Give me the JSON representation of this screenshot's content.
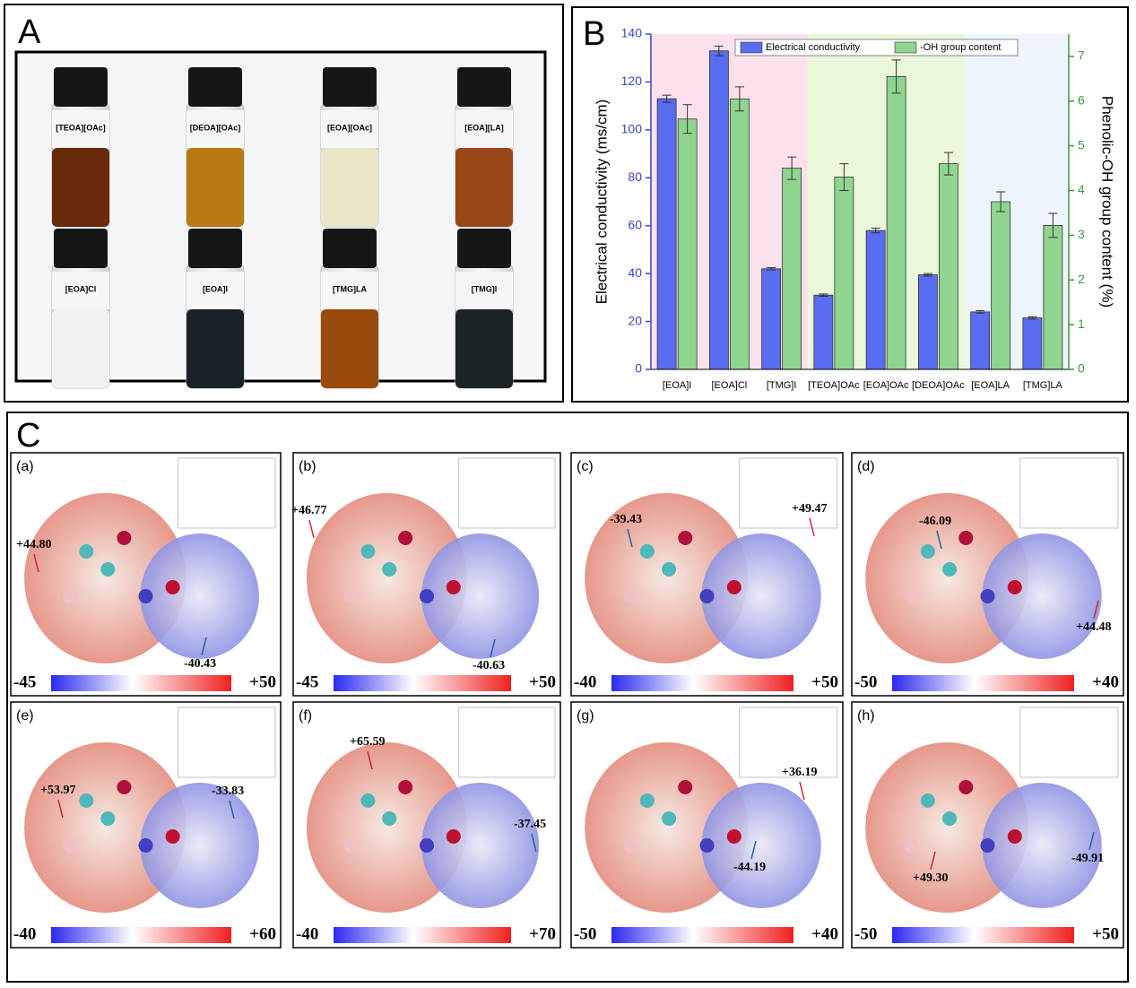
{
  "panel_a": {
    "label": "A",
    "vials": [
      {
        "label": "[TEOA][OAc]",
        "color": "#6b2a0c"
      },
      {
        "label": "[DEOA][OAc]",
        "color": "#b87a12"
      },
      {
        "label": "[EOA][OAc]",
        "color": "#e9e7c8"
      },
      {
        "label": "[EOA][LA]",
        "color": "#9a4818"
      },
      {
        "label": "[EOA]Cl",
        "color": "#f1f1ef"
      },
      {
        "label": "[EOA]I",
        "color": "#1a2228"
      },
      {
        "label": "[TMG]LA",
        "color": "#9a4a0c"
      },
      {
        "label": "[TMG]I",
        "color": "#1c2428"
      }
    ]
  },
  "chart_data": {
    "type": "bar",
    "label": "B",
    "categories": [
      "[EOA]I",
      "[EOA]Cl",
      "[TMG]I",
      "[TEOA]OAc",
      "[EOA]OAc",
      "[DEOA]OAc",
      "[EOA]LA",
      "[TMG]LA"
    ],
    "series": [
      {
        "name": "Electrical conductivity",
        "color": "#5a6cf0",
        "values": [
          113,
          133,
          42,
          31,
          58,
          39.5,
          24,
          21.5
        ],
        "errors": [
          1.5,
          2,
          0.5,
          0.5,
          1,
          0.5,
          0.5,
          0.5
        ]
      },
      {
        "name": "-OH group content",
        "color": "#8fd48f",
        "axis": "y2",
        "values": [
          5.6,
          6.05,
          4.5,
          4.3,
          6.55,
          4.6,
          3.75,
          3.22
        ],
        "errors": [
          0.32,
          0.27,
          0.25,
          0.3,
          0.37,
          0.25,
          0.22,
          0.27
        ]
      }
    ],
    "y_label": "Electrical conductivity (ms/cm)",
    "y2_label": "Phenolic-OH group content (%)",
    "ylim": [
      0,
      140
    ],
    "yticks": [
      0,
      20,
      40,
      60,
      80,
      100,
      120,
      140
    ],
    "y2lim": [
      0,
      7.5
    ],
    "y2ticks": [
      0,
      1,
      2,
      3,
      4,
      5,
      6,
      7
    ],
    "y_color": "#3a48b8",
    "y2_color": "#3c9a3c",
    "legend": "top"
  },
  "panel_c": {
    "label": "C",
    "panels": [
      {
        "label": "(a)",
        "annotations": [
          "+44.80",
          "-40.43"
        ],
        "scale_min": "-45",
        "scale_max": "+50"
      },
      {
        "label": "(b)",
        "annotations": [
          "+46.77",
          "-40.63"
        ],
        "scale_min": "-45",
        "scale_max": "+50"
      },
      {
        "label": "(c)",
        "annotations": [
          "-39.43",
          "+49.47"
        ],
        "scale_min": "-40",
        "scale_max": "+50"
      },
      {
        "label": "(d)",
        "annotations": [
          "-46.09",
          "+44.48"
        ],
        "scale_min": "-50",
        "scale_max": "+40"
      },
      {
        "label": "(e)",
        "annotations": [
          "+53.97",
          "-33.83"
        ],
        "scale_min": "-40",
        "scale_max": "+60"
      },
      {
        "label": "(f)",
        "annotations": [
          "+65.59",
          "-37.45"
        ],
        "scale_min": "-40",
        "scale_max": "+70"
      },
      {
        "label": "(g)",
        "annotations": [
          "+36.19",
          "-44.19"
        ],
        "scale_min": "-50",
        "scale_max": "+40"
      },
      {
        "label": "(h)",
        "annotations": [
          "+49.30",
          "-49.91"
        ],
        "scale_min": "-50",
        "scale_max": "+50"
      }
    ]
  }
}
